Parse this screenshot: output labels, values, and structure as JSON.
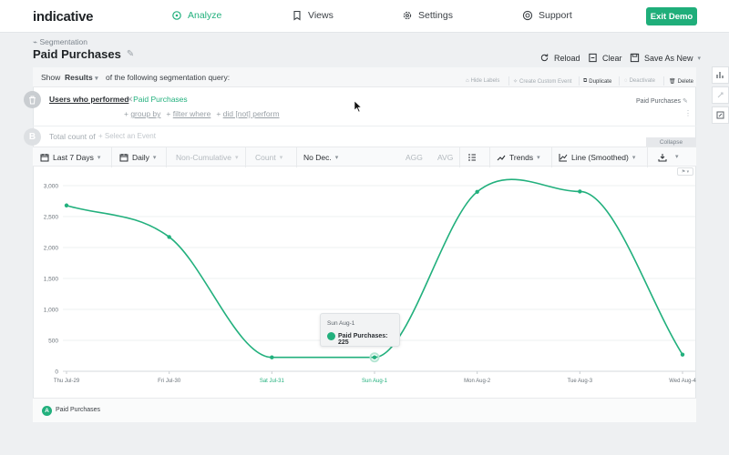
{
  "brand": {
    "logo": "indicative",
    "accent": "#22b07d"
  },
  "nav": {
    "items": [
      {
        "label": "Analyze",
        "icon": "analyze-icon",
        "active": true
      },
      {
        "label": "Views",
        "icon": "bookmark-icon",
        "active": false
      },
      {
        "label": "Settings",
        "icon": "gear-icon",
        "active": false
      },
      {
        "label": "Support",
        "icon": "support-icon",
        "active": false
      }
    ],
    "exit_label": "Exit Demo"
  },
  "header": {
    "breadcrumb": "Segmentation",
    "title": "Paid Purchases",
    "actions": {
      "reload": "Reload",
      "clear": "Clear",
      "save_as_new": "Save As New"
    }
  },
  "query": {
    "show_label": "Show",
    "show_value": "Results",
    "show_suffix": "of the following segmentation query:",
    "tools": {
      "hide_labels": "Hide Labels",
      "create_custom_event": "Create Custom Event",
      "duplicate": "Duplicate",
      "deactivate": "Deactivate",
      "delete": "Delete"
    },
    "a": {
      "label": "Users who performed",
      "event": "Paid Purchases",
      "right_label": "Paid Purchases"
    },
    "links": {
      "group_by": "group by",
      "filter_where": "filter where",
      "did_not": "did [not] perform"
    },
    "b": {
      "badge": "B",
      "label": "Total count of",
      "placeholder": "Select an Event"
    },
    "collapse": "Collapse"
  },
  "toolbar": {
    "date_range": "Last 7 Days",
    "interval": "Daily",
    "cumulative": "Non-Cumulative",
    "measure": "Count",
    "decimals": "No Dec.",
    "agg": "AGG",
    "avg": "AVG",
    "trends": "Trends",
    "chart_type": "Line (Smoothed)"
  },
  "chart_data": {
    "type": "line",
    "x": [
      "Thu Jul-29",
      "Fri Jul-30",
      "Sat Jul-31",
      "Sun Aug-1",
      "Mon Aug-2",
      "Tue Aug-3",
      "Wed Aug-4"
    ],
    "weekend_indices": [
      2,
      3
    ],
    "series": [
      {
        "name": "Paid Purchases",
        "color": "#22b07d",
        "values": [
          2680,
          2170,
          225,
          225,
          2900,
          2905,
          270
        ]
      }
    ],
    "yticks": [
      "0",
      "500",
      "1,000",
      "1,500",
      "2,000",
      "2,500",
      "3,000"
    ],
    "ylim": [
      0,
      3000
    ],
    "grid": true,
    "legend": "bottom-left",
    "tooltip": {
      "date": "Sun Aug-1",
      "text": "Paid Purchases: 225"
    }
  },
  "legend": {
    "badge": "A",
    "label": "Paid Purchases"
  }
}
